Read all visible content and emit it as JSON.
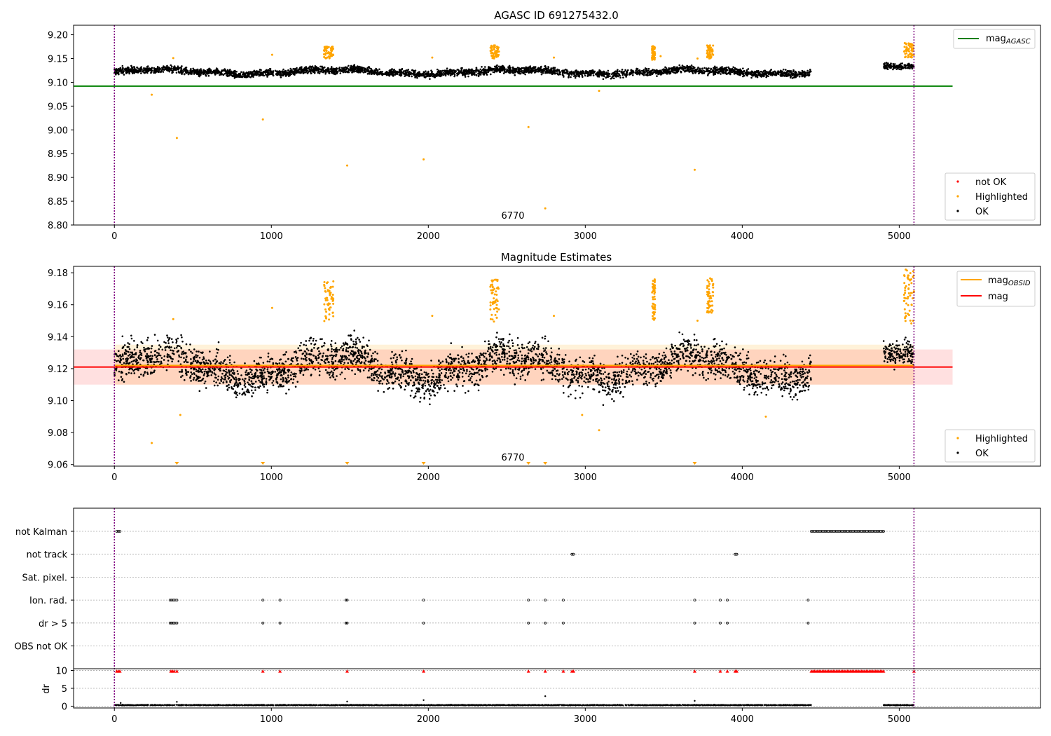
{
  "chart_data": [
    {
      "type": "scatter",
      "title": "AGASC ID 691275432.0",
      "xlim": [
        -260,
        5900
      ],
      "ylim": [
        8.8,
        9.22
      ],
      "x_ticks": [
        0,
        1000,
        2000,
        3000,
        4000,
        5000
      ],
      "y_ticks": [
        "8.80",
        "8.85",
        "8.90",
        "8.95",
        "9.00",
        "9.05",
        "9.10",
        "9.15",
        "9.20"
      ],
      "vlines": [
        0,
        5094
      ],
      "annotation": {
        "text": "6770",
        "x": 2540,
        "y": 8.817
      },
      "legend_upper": [
        {
          "name": "mag",
          "subscript": "AGASC",
          "color": "#008000"
        }
      ],
      "legend_lower": [
        {
          "name": "not OK",
          "color": "#ff0000"
        },
        {
          "name": "Highlighted",
          "color": "#ffa500"
        },
        {
          "name": "OK",
          "color": "#000000"
        }
      ],
      "hlines": [
        {
          "name": "mag_AGASC",
          "y": 9.092,
          "x": [
            -260,
            5340
          ],
          "color": "#008000"
        }
      ],
      "series": [
        {
          "name": "OK",
          "color": "#000000",
          "segments": [
            {
              "x": [
                0,
                4440
              ],
              "base": 9.122,
              "spread": 0.018
            },
            {
              "x": [
                4900,
                5094
              ],
              "base": 9.132,
              "spread": 0.015
            }
          ]
        },
        {
          "name": "Highlighted",
          "color": "#ffa500",
          "points": [
            [
              238,
              9.074
            ],
            [
              398,
              8.983
            ],
            [
              946,
              9.022
            ],
            [
              1483,
              8.925
            ],
            [
              1970,
              8.938
            ],
            [
              2638,
              9.006
            ],
            [
              2745,
              8.835
            ],
            [
              3088,
              9.082
            ],
            [
              3697,
              8.916
            ],
            [
              375,
              9.151
            ],
            [
              1005,
              9.158
            ],
            [
              2025,
              9.152
            ],
            [
              2800,
              9.152
            ],
            [
              3480,
              9.155
            ],
            [
              3715,
              9.15
            ]
          ],
          "clusters": [
            {
              "x": [
                1335,
                1395
              ],
              "y": [
                9.15,
                9.175
              ]
            },
            {
              "x": [
                2395,
                2450
              ],
              "y": [
                9.15,
                9.178
              ]
            },
            {
              "x": [
                3425,
                3445
              ],
              "y": [
                9.147,
                9.176
              ]
            },
            {
              "x": [
                3775,
                3815
              ],
              "y": [
                9.15,
                9.178
              ]
            },
            {
              "x": [
                5030,
                5094
              ],
              "y": [
                9.152,
                9.183
              ]
            }
          ]
        }
      ]
    },
    {
      "type": "scatter",
      "title": "Magnitude Estimates",
      "xlim": [
        -260,
        5900
      ],
      "ylim": [
        9.059,
        9.184
      ],
      "x_ticks": [
        0,
        1000,
        2000,
        3000,
        4000,
        5000
      ],
      "y_ticks": [
        "9.06",
        "9.08",
        "9.10",
        "9.12",
        "9.14",
        "9.16",
        "9.18"
      ],
      "vlines": [
        0,
        5094
      ],
      "annotation": {
        "text": "6770",
        "x": 2540,
        "y": 9.0625
      },
      "legend_upper": [
        {
          "name": "mag",
          "subscript": "OBSID",
          "color": "#ffa500"
        },
        {
          "name": "mag",
          "subscript": "",
          "color": "#ff0000"
        }
      ],
      "legend_lower": [
        {
          "name": "Highlighted",
          "color": "#ffa500"
        },
        {
          "name": "OK",
          "color": "#000000"
        }
      ],
      "mag_line": {
        "y": 9.121,
        "band": [
          9.11,
          9.132
        ],
        "x": [
          -260,
          5340
        ],
        "color": "#ff0000"
      },
      "mag_obsid_line": {
        "y": 9.122,
        "band": [
          9.11,
          9.135
        ],
        "x": [
          0,
          5094
        ],
        "color": "#ffa500"
      },
      "series": [
        {
          "name": "OK",
          "color": "#000000",
          "segments": [
            {
              "x": [
                0,
                4440
              ],
              "base": 9.121,
              "spread": 0.028
            },
            {
              "x": [
                4900,
                5094
              ],
              "base": 9.128,
              "spread": 0.02
            }
          ]
        },
        {
          "name": "Highlighted",
          "color": "#ffa500",
          "points": [
            [
              238,
              9.0735
            ],
            [
              375,
              9.151
            ],
            [
              1005,
              9.158
            ],
            [
              2025,
              9.153
            ],
            [
              2800,
              9.153
            ],
            [
              3088,
              9.0815
            ],
            [
              2980,
              9.091
            ],
            [
              420,
              9.091
            ],
            [
              4150,
              9.09
            ],
            [
              3715,
              9.15
            ]
          ],
          "clusters": [
            {
              "x": [
                1335,
                1395
              ],
              "y": [
                9.149,
                9.175
              ]
            },
            {
              "x": [
                2395,
                2450
              ],
              "y": [
                9.149,
                9.176
              ]
            },
            {
              "x": [
                3425,
                3445
              ],
              "y": [
                9.15,
                9.176
              ]
            },
            {
              "x": [
                3775,
                3815
              ],
              "y": [
                9.155,
                9.177
              ]
            },
            {
              "x": [
                5030,
                5094
              ],
              "y": [
                9.148,
                9.182
              ]
            }
          ],
          "floor_markers": [
            398,
            946,
            1483,
            1970,
            2638,
            2745,
            3697
          ]
        }
      ]
    },
    {
      "type": "scatter",
      "xlim": [
        -260,
        5900
      ],
      "x_ticks": [
        0,
        1000,
        2000,
        3000,
        4000,
        5000
      ],
      "vlines": [
        0,
        5094
      ],
      "flag_rows": [
        "not Kalman",
        "not track",
        "Sat. pixel.",
        "Ion. rad.",
        "dr > 5",
        "OBS not OK"
      ],
      "flags": {
        "not Kalman": {
          "points": [
            15,
            25,
            35
          ],
          "range": [
            4440,
            4900
          ],
          "step": 10
        },
        "not track": {
          "points": [
            2915,
            2925,
            3955,
            3965
          ]
        },
        "Sat. pixel.": {
          "points": []
        },
        "Ion. rad.": {
          "points": [
            355,
            365,
            375,
            385,
            398,
            946,
            1055,
            1475,
            1483,
            1970,
            2638,
            2745,
            2860,
            3697,
            3860,
            3905,
            4420
          ]
        },
        "dr > 5": {
          "points": [
            355,
            365,
            375,
            385,
            398,
            946,
            1055,
            1475,
            1483,
            1970,
            2638,
            2745,
            2860,
            3697,
            3860,
            3905,
            4420
          ]
        },
        "OBS not OK": {
          "points": []
        }
      },
      "dr_ylabel": "dr",
      "dr_ticks": [
        0,
        5,
        10
      ],
      "dr_ylim": [
        -0.5,
        10.5
      ],
      "dr_series": [
        {
          "name": "dr",
          "color": "#000000",
          "segments": [
            {
              "x": [
                0,
                4440
              ],
              "base": 0.3,
              "spread": 0.3
            },
            {
              "x": [
                4900,
                5094
              ],
              "base": 0.3,
              "spread": 0.3
            }
          ],
          "points": [
            [
              2745,
              2.8
            ],
            [
              1970,
              1.7
            ],
            [
              3697,
              1.5
            ],
            [
              1483,
              1.3
            ],
            [
              398,
              1.2
            ],
            [
              40,
              0.9
            ]
          ]
        },
        {
          "name": "dr clipped",
          "color": "#ff0000",
          "y": 9.8,
          "points": [
            15,
            25,
            35,
            360,
            370,
            380,
            398,
            946,
            1055,
            1483,
            1970,
            2638,
            2745,
            2860,
            2915,
            2925,
            3697,
            3860,
            3905,
            3955,
            3965,
            5094
          ],
          "range": [
            4440,
            4900
          ],
          "step": 10
        }
      ]
    }
  ]
}
